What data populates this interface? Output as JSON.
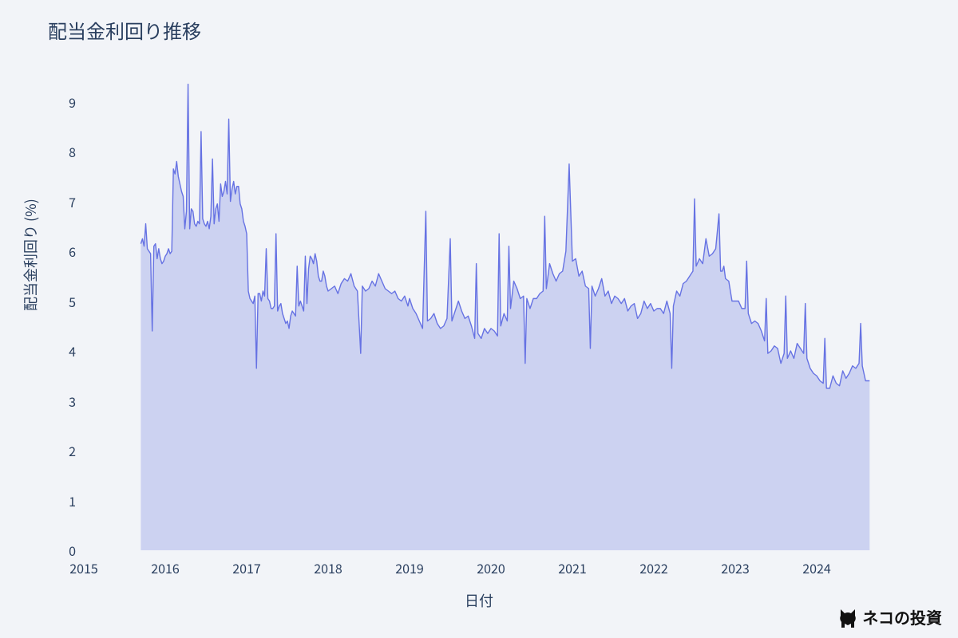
{
  "chart": {
    "type": "area",
    "title": "配当金利回り推移",
    "xlabel": "日付",
    "ylabel": "配当金利回り (%)",
    "title_fontsize": 24,
    "label_fontsize": 18,
    "tick_fontsize": 16,
    "background_color": "#f2f4f8",
    "line_color": "#6672e3",
    "fill_color": "#c5cbf0",
    "fill_opacity": 0.85,
    "grid_color": "none",
    "text_color": "#2a3f5f",
    "line_width": 1.4,
    "ylim": [
      0,
      9.6
    ],
    "yticks": [
      0,
      1,
      2,
      3,
      4,
      5,
      6,
      7,
      8,
      9
    ],
    "x_start_year": 2015,
    "x_end_year": 2025,
    "xticks": [
      2015,
      2016,
      2017,
      2018,
      2019,
      2020,
      2021,
      2022,
      2023,
      2024
    ],
    "series": [
      [
        2015.7,
        6.15
      ],
      [
        2015.72,
        6.25
      ],
      [
        2015.74,
        6.1
      ],
      [
        2015.76,
        6.55
      ],
      [
        2015.78,
        6.05
      ],
      [
        2015.8,
        6.0
      ],
      [
        2015.82,
        5.95
      ],
      [
        2015.84,
        4.4
      ],
      [
        2015.86,
        6.1
      ],
      [
        2015.88,
        6.15
      ],
      [
        2015.9,
        5.85
      ],
      [
        2015.92,
        6.05
      ],
      [
        2015.94,
        5.85
      ],
      [
        2015.96,
        5.75
      ],
      [
        2015.98,
        5.8
      ],
      [
        2016.0,
        5.9
      ],
      [
        2016.02,
        5.95
      ],
      [
        2016.04,
        6.05
      ],
      [
        2016.06,
        5.95
      ],
      [
        2016.08,
        6.0
      ],
      [
        2016.1,
        7.65
      ],
      [
        2016.12,
        7.55
      ],
      [
        2016.14,
        7.8
      ],
      [
        2016.16,
        7.5
      ],
      [
        2016.18,
        7.35
      ],
      [
        2016.2,
        7.2
      ],
      [
        2016.22,
        7.1
      ],
      [
        2016.24,
        6.45
      ],
      [
        2016.26,
        6.8
      ],
      [
        2016.28,
        9.35
      ],
      [
        2016.3,
        6.45
      ],
      [
        2016.32,
        6.85
      ],
      [
        2016.34,
        6.8
      ],
      [
        2016.36,
        6.55
      ],
      [
        2016.38,
        6.5
      ],
      [
        2016.4,
        6.6
      ],
      [
        2016.42,
        6.55
      ],
      [
        2016.44,
        8.4
      ],
      [
        2016.46,
        6.65
      ],
      [
        2016.48,
        6.55
      ],
      [
        2016.5,
        6.5
      ],
      [
        2016.52,
        6.6
      ],
      [
        2016.54,
        6.45
      ],
      [
        2016.56,
        6.7
      ],
      [
        2016.58,
        7.85
      ],
      [
        2016.6,
        6.55
      ],
      [
        2016.62,
        6.85
      ],
      [
        2016.64,
        6.95
      ],
      [
        2016.66,
        6.6
      ],
      [
        2016.68,
        7.35
      ],
      [
        2016.7,
        7.1
      ],
      [
        2016.72,
        7.2
      ],
      [
        2016.74,
        7.4
      ],
      [
        2016.76,
        7.15
      ],
      [
        2016.78,
        8.65
      ],
      [
        2016.8,
        7.0
      ],
      [
        2016.82,
        7.25
      ],
      [
        2016.84,
        7.4
      ],
      [
        2016.86,
        7.15
      ],
      [
        2016.88,
        7.3
      ],
      [
        2016.9,
        7.3
      ],
      [
        2016.92,
        6.95
      ],
      [
        2016.94,
        6.85
      ],
      [
        2016.96,
        6.6
      ],
      [
        2016.98,
        6.5
      ],
      [
        2017.0,
        6.35
      ],
      [
        2017.02,
        5.2
      ],
      [
        2017.04,
        5.05
      ],
      [
        2017.06,
        5.0
      ],
      [
        2017.08,
        4.95
      ],
      [
        2017.1,
        5.1
      ],
      [
        2017.12,
        3.65
      ],
      [
        2017.14,
        5.15
      ],
      [
        2017.16,
        5.15
      ],
      [
        2017.18,
        5.0
      ],
      [
        2017.2,
        5.2
      ],
      [
        2017.22,
        5.1
      ],
      [
        2017.24,
        6.05
      ],
      [
        2017.26,
        5.05
      ],
      [
        2017.28,
        5.0
      ],
      [
        2017.3,
        4.85
      ],
      [
        2017.32,
        4.85
      ],
      [
        2017.34,
        4.9
      ],
      [
        2017.36,
        6.35
      ],
      [
        2017.38,
        4.8
      ],
      [
        2017.4,
        4.9
      ],
      [
        2017.42,
        4.95
      ],
      [
        2017.44,
        4.75
      ],
      [
        2017.46,
        4.65
      ],
      [
        2017.48,
        4.55
      ],
      [
        2017.5,
        4.6
      ],
      [
        2017.52,
        4.45
      ],
      [
        2017.54,
        4.7
      ],
      [
        2017.56,
        4.8
      ],
      [
        2017.58,
        4.75
      ],
      [
        2017.6,
        4.7
      ],
      [
        2017.62,
        5.7
      ],
      [
        2017.64,
        4.9
      ],
      [
        2017.66,
        5.0
      ],
      [
        2017.68,
        4.9
      ],
      [
        2017.7,
        4.8
      ],
      [
        2017.72,
        5.9
      ],
      [
        2017.74,
        4.95
      ],
      [
        2017.76,
        5.65
      ],
      [
        2017.78,
        5.9
      ],
      [
        2017.8,
        5.85
      ],
      [
        2017.82,
        5.75
      ],
      [
        2017.84,
        5.95
      ],
      [
        2017.86,
        5.8
      ],
      [
        2017.88,
        5.5
      ],
      [
        2017.9,
        5.4
      ],
      [
        2017.92,
        5.4
      ],
      [
        2017.94,
        5.6
      ],
      [
        2017.96,
        5.5
      ],
      [
        2017.98,
        5.3
      ],
      [
        2018.0,
        5.2
      ],
      [
        2018.04,
        5.25
      ],
      [
        2018.08,
        5.3
      ],
      [
        2018.12,
        5.15
      ],
      [
        2018.16,
        5.35
      ],
      [
        2018.2,
        5.45
      ],
      [
        2018.24,
        5.4
      ],
      [
        2018.28,
        5.55
      ],
      [
        2018.32,
        5.3
      ],
      [
        2018.36,
        5.2
      ],
      [
        2018.4,
        3.95
      ],
      [
        2018.42,
        5.3
      ],
      [
        2018.46,
        5.2
      ],
      [
        2018.5,
        5.25
      ],
      [
        2018.54,
        5.4
      ],
      [
        2018.58,
        5.3
      ],
      [
        2018.62,
        5.55
      ],
      [
        2018.66,
        5.4
      ],
      [
        2018.7,
        5.25
      ],
      [
        2018.74,
        5.2
      ],
      [
        2018.78,
        5.15
      ],
      [
        2018.82,
        5.2
      ],
      [
        2018.86,
        5.05
      ],
      [
        2018.9,
        5.0
      ],
      [
        2018.94,
        5.1
      ],
      [
        2018.98,
        4.9
      ],
      [
        2019.0,
        5.05
      ],
      [
        2019.04,
        4.85
      ],
      [
        2019.08,
        4.75
      ],
      [
        2019.12,
        4.6
      ],
      [
        2019.16,
        4.45
      ],
      [
        2019.2,
        6.8
      ],
      [
        2019.22,
        4.6
      ],
      [
        2019.26,
        4.65
      ],
      [
        2019.3,
        4.75
      ],
      [
        2019.34,
        4.55
      ],
      [
        2019.38,
        4.45
      ],
      [
        2019.42,
        4.5
      ],
      [
        2019.46,
        4.65
      ],
      [
        2019.5,
        6.25
      ],
      [
        2019.52,
        4.6
      ],
      [
        2019.56,
        4.8
      ],
      [
        2019.6,
        5.0
      ],
      [
        2019.64,
        4.8
      ],
      [
        2019.68,
        4.65
      ],
      [
        2019.72,
        4.7
      ],
      [
        2019.76,
        4.5
      ],
      [
        2019.8,
        4.25
      ],
      [
        2019.82,
        5.75
      ],
      [
        2019.84,
        4.35
      ],
      [
        2019.88,
        4.25
      ],
      [
        2019.92,
        4.45
      ],
      [
        2019.96,
        4.35
      ],
      [
        2020.0,
        4.45
      ],
      [
        2020.04,
        4.4
      ],
      [
        2020.08,
        4.3
      ],
      [
        2020.1,
        6.35
      ],
      [
        2020.12,
        4.5
      ],
      [
        2020.16,
        4.75
      ],
      [
        2020.2,
        4.6
      ],
      [
        2020.22,
        6.1
      ],
      [
        2020.24,
        4.85
      ],
      [
        2020.28,
        5.4
      ],
      [
        2020.32,
        5.25
      ],
      [
        2020.36,
        5.05
      ],
      [
        2020.4,
        5.1
      ],
      [
        2020.42,
        3.75
      ],
      [
        2020.44,
        5.05
      ],
      [
        2020.48,
        4.85
      ],
      [
        2020.52,
        5.05
      ],
      [
        2020.56,
        5.05
      ],
      [
        2020.6,
        5.15
      ],
      [
        2020.64,
        5.2
      ],
      [
        2020.66,
        6.7
      ],
      [
        2020.68,
        5.25
      ],
      [
        2020.72,
        5.75
      ],
      [
        2020.76,
        5.55
      ],
      [
        2020.8,
        5.4
      ],
      [
        2020.84,
        5.55
      ],
      [
        2020.88,
        5.6
      ],
      [
        2020.9,
        5.8
      ],
      [
        2020.92,
        6.0
      ],
      [
        2020.96,
        7.75
      ],
      [
        2021.0,
        5.8
      ],
      [
        2021.04,
        5.85
      ],
      [
        2021.08,
        5.5
      ],
      [
        2021.12,
        5.6
      ],
      [
        2021.16,
        5.3
      ],
      [
        2021.2,
        5.25
      ],
      [
        2021.22,
        4.05
      ],
      [
        2021.24,
        5.3
      ],
      [
        2021.28,
        5.1
      ],
      [
        2021.32,
        5.25
      ],
      [
        2021.36,
        5.45
      ],
      [
        2021.4,
        5.1
      ],
      [
        2021.44,
        5.2
      ],
      [
        2021.48,
        4.95
      ],
      [
        2021.52,
        5.1
      ],
      [
        2021.56,
        5.05
      ],
      [
        2021.6,
        4.95
      ],
      [
        2021.64,
        5.05
      ],
      [
        2021.68,
        4.8
      ],
      [
        2021.72,
        4.9
      ],
      [
        2021.76,
        4.95
      ],
      [
        2021.8,
        4.65
      ],
      [
        2021.84,
        4.75
      ],
      [
        2021.88,
        5.0
      ],
      [
        2021.92,
        4.85
      ],
      [
        2021.96,
        4.95
      ],
      [
        2022.0,
        4.8
      ],
      [
        2022.04,
        4.85
      ],
      [
        2022.08,
        4.85
      ],
      [
        2022.12,
        4.75
      ],
      [
        2022.16,
        5.0
      ],
      [
        2022.2,
        4.75
      ],
      [
        2022.22,
        3.65
      ],
      [
        2022.24,
        4.9
      ],
      [
        2022.28,
        5.2
      ],
      [
        2022.32,
        5.1
      ],
      [
        2022.36,
        5.35
      ],
      [
        2022.4,
        5.4
      ],
      [
        2022.44,
        5.5
      ],
      [
        2022.48,
        5.6
      ],
      [
        2022.5,
        7.05
      ],
      [
        2022.52,
        5.7
      ],
      [
        2022.56,
        5.85
      ],
      [
        2022.6,
        5.75
      ],
      [
        2022.64,
        6.25
      ],
      [
        2022.68,
        5.9
      ],
      [
        2022.72,
        5.95
      ],
      [
        2022.76,
        6.05
      ],
      [
        2022.8,
        6.75
      ],
      [
        2022.82,
        5.6
      ],
      [
        2022.84,
        5.6
      ],
      [
        2022.86,
        5.7
      ],
      [
        2022.88,
        5.45
      ],
      [
        2022.92,
        5.4
      ],
      [
        2022.96,
        5.0
      ],
      [
        2023.0,
        5.0
      ],
      [
        2023.04,
        5.0
      ],
      [
        2023.08,
        4.85
      ],
      [
        2023.12,
        4.85
      ],
      [
        2023.14,
        5.8
      ],
      [
        2023.16,
        4.75
      ],
      [
        2023.2,
        4.55
      ],
      [
        2023.24,
        4.6
      ],
      [
        2023.28,
        4.55
      ],
      [
        2023.32,
        4.4
      ],
      [
        2023.36,
        4.2
      ],
      [
        2023.38,
        5.05
      ],
      [
        2023.4,
        3.95
      ],
      [
        2023.44,
        4.0
      ],
      [
        2023.48,
        4.1
      ],
      [
        2023.52,
        4.05
      ],
      [
        2023.56,
        3.75
      ],
      [
        2023.6,
        3.95
      ],
      [
        2023.62,
        5.1
      ],
      [
        2023.64,
        3.85
      ],
      [
        2023.68,
        4.0
      ],
      [
        2023.72,
        3.85
      ],
      [
        2023.76,
        4.15
      ],
      [
        2023.8,
        4.05
      ],
      [
        2023.84,
        3.95
      ],
      [
        2023.86,
        4.95
      ],
      [
        2023.88,
        3.85
      ],
      [
        2023.92,
        3.65
      ],
      [
        2023.96,
        3.55
      ],
      [
        2024.0,
        3.5
      ],
      [
        2024.04,
        3.4
      ],
      [
        2024.08,
        3.35
      ],
      [
        2024.1,
        4.25
      ],
      [
        2024.12,
        3.25
      ],
      [
        2024.16,
        3.25
      ],
      [
        2024.2,
        3.5
      ],
      [
        2024.24,
        3.35
      ],
      [
        2024.28,
        3.3
      ],
      [
        2024.32,
        3.6
      ],
      [
        2024.36,
        3.45
      ],
      [
        2024.4,
        3.55
      ],
      [
        2024.44,
        3.7
      ],
      [
        2024.48,
        3.65
      ],
      [
        2024.52,
        3.75
      ],
      [
        2024.54,
        4.55
      ],
      [
        2024.56,
        3.7
      ],
      [
        2024.6,
        3.4
      ],
      [
        2024.65,
        3.4
      ]
    ]
  },
  "watermark": {
    "text": "ネコの投資",
    "color": "#111111",
    "fontsize": 20
  }
}
